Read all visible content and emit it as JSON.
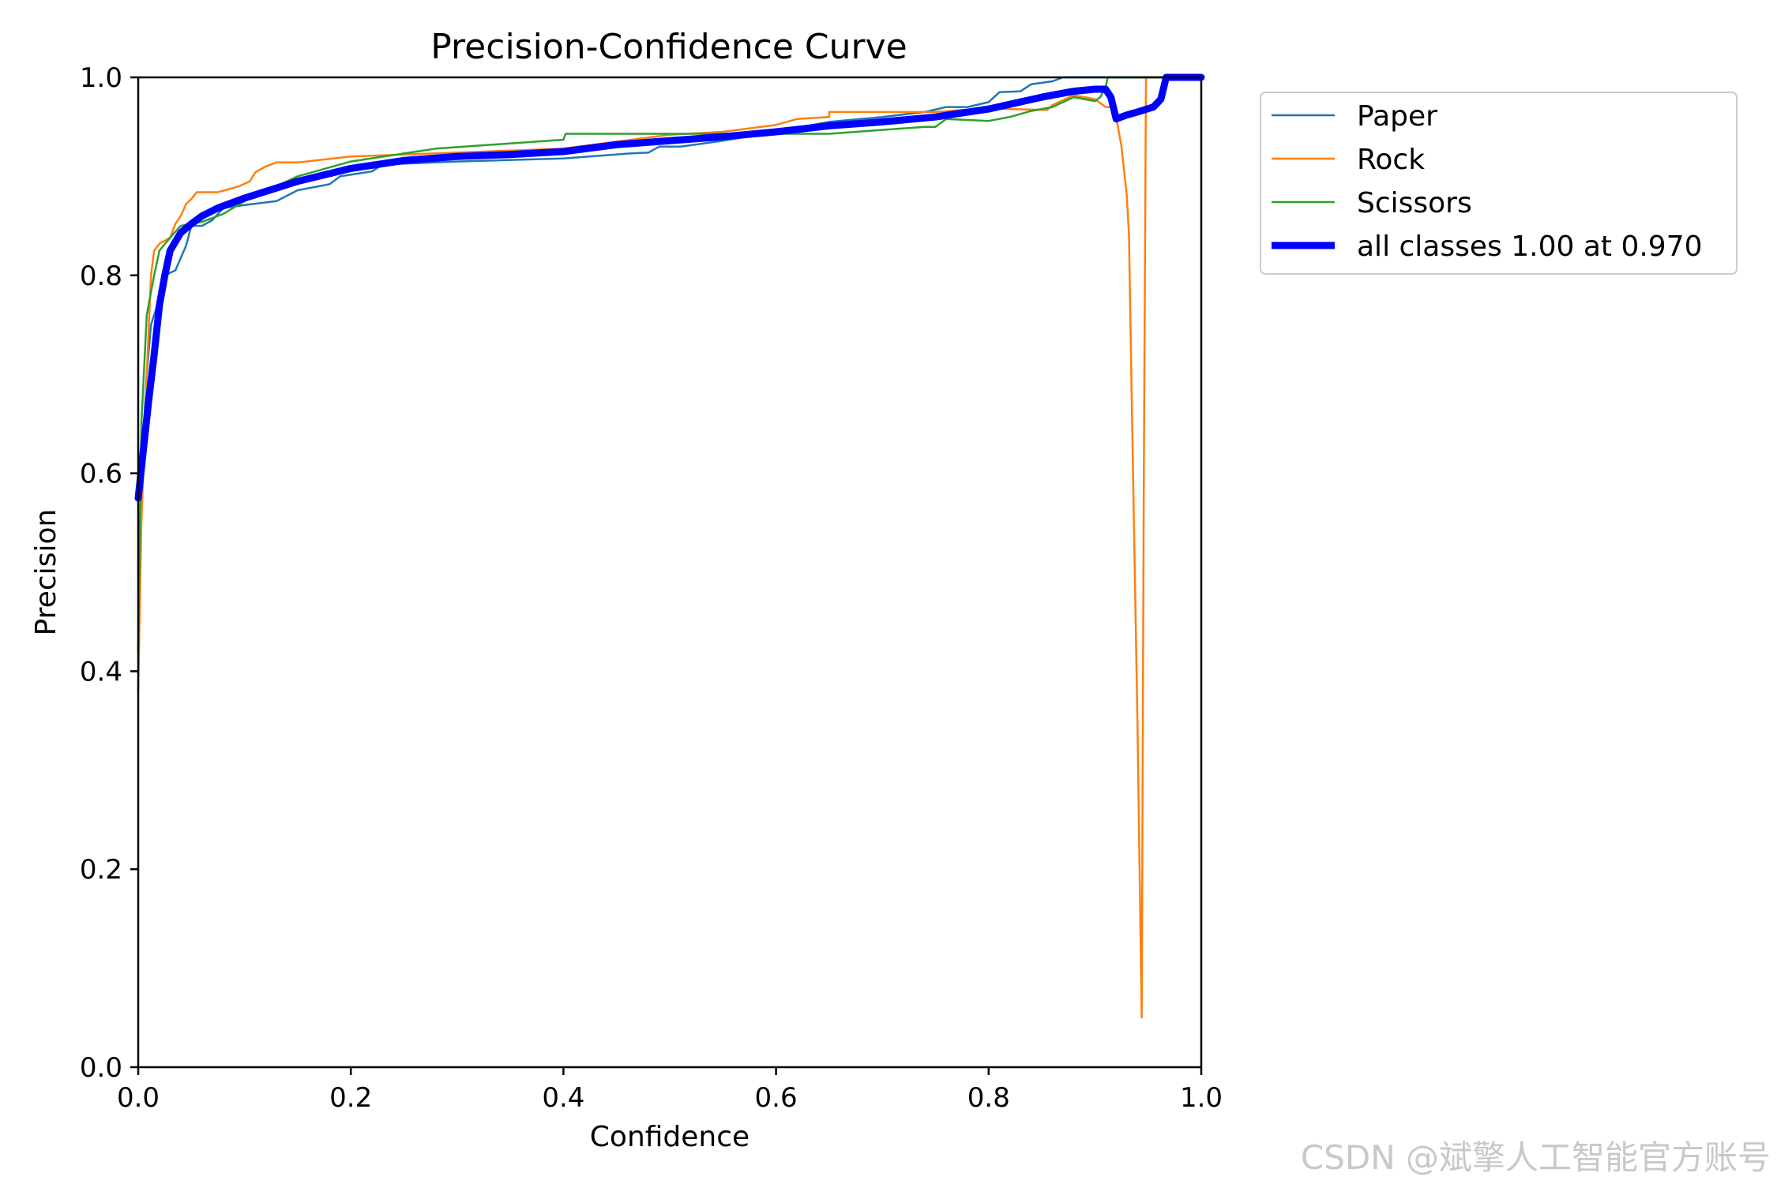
{
  "chart_data": {
    "type": "line",
    "title": "Precision-Confidence Curve",
    "xlabel": "Confidence",
    "ylabel": "Precision",
    "xlim": [
      0,
      1
    ],
    "ylim": [
      0,
      1
    ],
    "xticks": [
      "0.0",
      "0.2",
      "0.4",
      "0.6",
      "0.8",
      "1.0"
    ],
    "yticks": [
      "0.0",
      "0.2",
      "0.4",
      "0.6",
      "0.8",
      "1.0"
    ],
    "grid": false,
    "legend_position": "outside-top-right",
    "series": [
      {
        "name": "Paper",
        "color": "#1f77b4",
        "points": [
          [
            0.0,
            0.42
          ],
          [
            0.003,
            0.6
          ],
          [
            0.008,
            0.7
          ],
          [
            0.012,
            0.75
          ],
          [
            0.018,
            0.77
          ],
          [
            0.025,
            0.8
          ],
          [
            0.035,
            0.805
          ],
          [
            0.045,
            0.83
          ],
          [
            0.05,
            0.85
          ],
          [
            0.06,
            0.85
          ],
          [
            0.07,
            0.856
          ],
          [
            0.08,
            0.868
          ],
          [
            0.1,
            0.871
          ],
          [
            0.13,
            0.875
          ],
          [
            0.15,
            0.886
          ],
          [
            0.18,
            0.892
          ],
          [
            0.19,
            0.9
          ],
          [
            0.22,
            0.905
          ],
          [
            0.23,
            0.912
          ],
          [
            0.3,
            0.915
          ],
          [
            0.4,
            0.918
          ],
          [
            0.46,
            0.923
          ],
          [
            0.48,
            0.924
          ],
          [
            0.49,
            0.93
          ],
          [
            0.51,
            0.93
          ],
          [
            0.55,
            0.936
          ],
          [
            0.6,
            0.945
          ],
          [
            0.65,
            0.955
          ],
          [
            0.7,
            0.96
          ],
          [
            0.74,
            0.965
          ],
          [
            0.76,
            0.97
          ],
          [
            0.78,
            0.97
          ],
          [
            0.8,
            0.975
          ],
          [
            0.81,
            0.985
          ],
          [
            0.83,
            0.986
          ],
          [
            0.84,
            0.993
          ],
          [
            0.86,
            0.996
          ],
          [
            0.87,
            1.0
          ],
          [
            0.9,
            1.0
          ],
          [
            1.0,
            1.0
          ]
        ]
      },
      {
        "name": "Rock",
        "color": "#ff7f0e",
        "points": [
          [
            0.0,
            0.38
          ],
          [
            0.003,
            0.55
          ],
          [
            0.008,
            0.7
          ],
          [
            0.012,
            0.8
          ],
          [
            0.015,
            0.825
          ],
          [
            0.02,
            0.832
          ],
          [
            0.03,
            0.838
          ],
          [
            0.035,
            0.852
          ],
          [
            0.04,
            0.86
          ],
          [
            0.045,
            0.872
          ],
          [
            0.05,
            0.877
          ],
          [
            0.055,
            0.884
          ],
          [
            0.075,
            0.884
          ],
          [
            0.095,
            0.89
          ],
          [
            0.105,
            0.895
          ],
          [
            0.11,
            0.904
          ],
          [
            0.12,
            0.91
          ],
          [
            0.13,
            0.914
          ],
          [
            0.15,
            0.914
          ],
          [
            0.2,
            0.92
          ],
          [
            0.3,
            0.924
          ],
          [
            0.4,
            0.928
          ],
          [
            0.5,
            0.942
          ],
          [
            0.55,
            0.945
          ],
          [
            0.6,
            0.952
          ],
          [
            0.62,
            0.958
          ],
          [
            0.65,
            0.96
          ],
          [
            0.65,
            0.965
          ],
          [
            0.7,
            0.965
          ],
          [
            0.75,
            0.965
          ],
          [
            0.8,
            0.969
          ],
          [
            0.82,
            0.968
          ],
          [
            0.855,
            0.967
          ],
          [
            0.86,
            0.972
          ],
          [
            0.88,
            0.982
          ],
          [
            0.9,
            0.978
          ],
          [
            0.91,
            0.97
          ],
          [
            0.915,
            0.97
          ],
          [
            0.92,
            0.96
          ],
          [
            0.925,
            0.93
          ],
          [
            0.93,
            0.88
          ],
          [
            0.932,
            0.84
          ],
          [
            0.935,
            0.65
          ],
          [
            0.94,
            0.35
          ],
          [
            0.944,
            0.05
          ],
          [
            0.946,
            0.6
          ],
          [
            0.948,
            1.0
          ],
          [
            0.96,
            1.0
          ],
          [
            1.0,
            1.0
          ]
        ]
      },
      {
        "name": "Scissors",
        "color": "#2ca02c",
        "points": [
          [
            0.0,
            0.42
          ],
          [
            0.003,
            0.65
          ],
          [
            0.008,
            0.76
          ],
          [
            0.015,
            0.8
          ],
          [
            0.02,
            0.825
          ],
          [
            0.03,
            0.838
          ],
          [
            0.04,
            0.85
          ],
          [
            0.06,
            0.854
          ],
          [
            0.08,
            0.862
          ],
          [
            0.1,
            0.875
          ],
          [
            0.15,
            0.9
          ],
          [
            0.2,
            0.915
          ],
          [
            0.28,
            0.928
          ],
          [
            0.4,
            0.937
          ],
          [
            0.402,
            0.943
          ],
          [
            0.5,
            0.943
          ],
          [
            0.6,
            0.943
          ],
          [
            0.65,
            0.943
          ],
          [
            0.74,
            0.95
          ],
          [
            0.75,
            0.95
          ],
          [
            0.76,
            0.958
          ],
          [
            0.8,
            0.956
          ],
          [
            0.82,
            0.96
          ],
          [
            0.84,
            0.966
          ],
          [
            0.86,
            0.97
          ],
          [
            0.88,
            0.98
          ],
          [
            0.9,
            0.976
          ],
          [
            0.905,
            0.98
          ],
          [
            0.91,
            0.99
          ],
          [
            0.912,
            1.0
          ],
          [
            1.0,
            1.0
          ]
        ]
      },
      {
        "name": "all classes 1.00 at 0.970",
        "color": "#0000ff",
        "thick": true,
        "points": [
          [
            0.0,
            0.575
          ],
          [
            0.005,
            0.625
          ],
          [
            0.01,
            0.675
          ],
          [
            0.015,
            0.72
          ],
          [
            0.02,
            0.77
          ],
          [
            0.025,
            0.8
          ],
          [
            0.03,
            0.825
          ],
          [
            0.04,
            0.843
          ],
          [
            0.05,
            0.852
          ],
          [
            0.06,
            0.86
          ],
          [
            0.075,
            0.868
          ],
          [
            0.1,
            0.878
          ],
          [
            0.15,
            0.895
          ],
          [
            0.2,
            0.908
          ],
          [
            0.25,
            0.916
          ],
          [
            0.3,
            0.92
          ],
          [
            0.35,
            0.922
          ],
          [
            0.4,
            0.925
          ],
          [
            0.45,
            0.932
          ],
          [
            0.5,
            0.936
          ],
          [
            0.55,
            0.94
          ],
          [
            0.6,
            0.945
          ],
          [
            0.65,
            0.951
          ],
          [
            0.7,
            0.955
          ],
          [
            0.75,
            0.96
          ],
          [
            0.8,
            0.968
          ],
          [
            0.85,
            0.98
          ],
          [
            0.88,
            0.986
          ],
          [
            0.9,
            0.988
          ],
          [
            0.91,
            0.988
          ],
          [
            0.915,
            0.98
          ],
          [
            0.92,
            0.958
          ],
          [
            0.93,
            0.962
          ],
          [
            0.94,
            0.965
          ],
          [
            0.955,
            0.97
          ],
          [
            0.962,
            0.978
          ],
          [
            0.967,
            1.0
          ],
          [
            0.97,
            1.0
          ],
          [
            1.0,
            1.0
          ]
        ]
      }
    ]
  },
  "watermark": "CSDN @斌擎人工智能官方账号"
}
